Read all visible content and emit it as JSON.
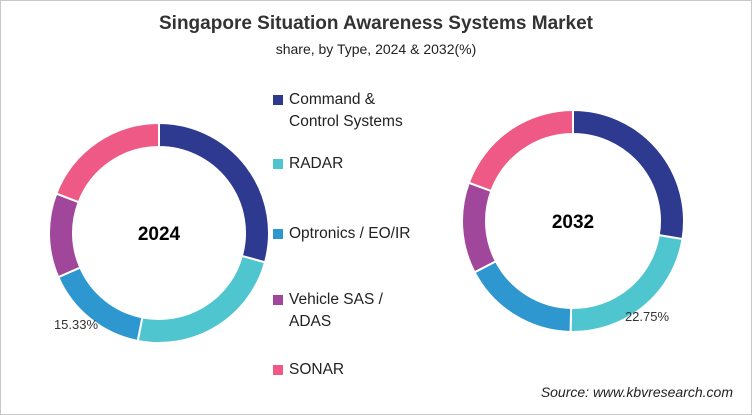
{
  "chart_data": [
    {
      "type": "pie",
      "title": "Singapore Situation Awareness Systems Market",
      "subtitle": "share, by Type, 2024 & 2032(%)",
      "center_label": "2024",
      "categories": [
        "Command & Control Systems",
        "RADAR",
        "Optronics / EO/IR",
        "Vehicle SAS / ADAS",
        "SONAR"
      ],
      "values": [
        29.3,
        23.8,
        15.33,
        12.4,
        19.17
      ],
      "data_labels": {
        "Optronics / EO/IR": "15.33%"
      }
    },
    {
      "type": "pie",
      "center_label": "2032",
      "categories": [
        "Command & Control Systems",
        "RADAR",
        "Optronics / EO/IR",
        "Vehicle SAS / ADAS",
        "SONAR"
      ],
      "values": [
        27.6,
        22.75,
        17.0,
        13.25,
        19.4
      ],
      "data_labels": {
        "RADAR": "22.75%"
      }
    }
  ],
  "legend": [
    {
      "line1": "Command &",
      "line2": "Control Systems",
      "color": "#2e3a8f"
    },
    {
      "line1": "RADAR",
      "line2": "",
      "color": "#4fc6cf"
    },
    {
      "line1": "Optronics / EO/IR",
      "line2": "",
      "color": "#2f97d0"
    },
    {
      "line1": "Vehicle SAS /",
      "line2": "ADAS",
      "color": "#a0479c"
    },
    {
      "line1": "SONAR",
      "line2": "",
      "color": "#ee5a85"
    }
  ],
  "source": "Source: www.kbvresearch.com"
}
